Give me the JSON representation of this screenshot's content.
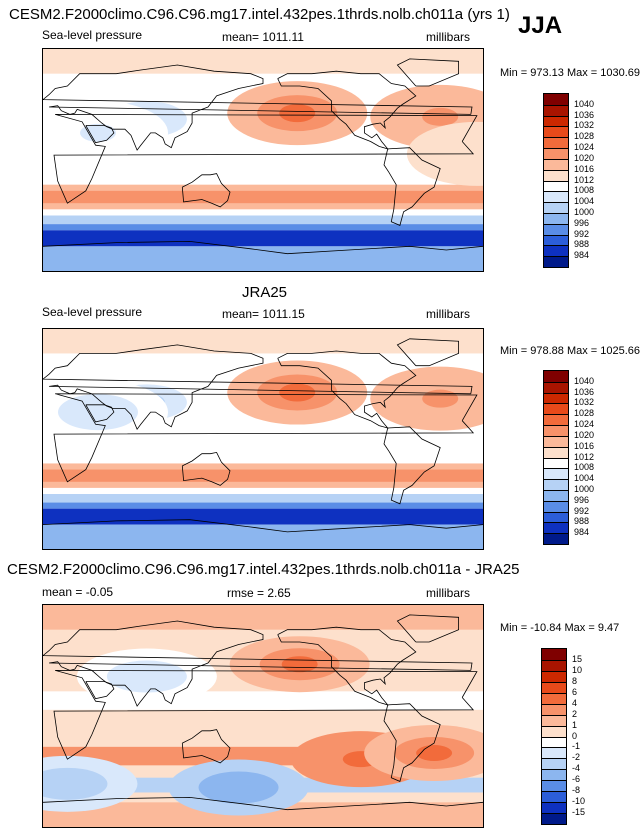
{
  "season": "JJA",
  "chart_data": [
    {
      "type": "heatmap",
      "title": "CESM2.F2000climo.C96.C96.mg17.intel.432pes.1thrds.nolb.ch011a (yrs 1)",
      "left_label": "Sea-level pressure",
      "mean_text": "mean= 1011.11",
      "units": "millibars",
      "minmax_text": "Min = 973.13 Max = 1030.69",
      "field_min": 973.13,
      "field_max": 1030.69,
      "colorbar": {
        "levels": [
          "1040",
          "1036",
          "1032",
          "1028",
          "1024",
          "1020",
          "1016",
          "1012",
          "1008",
          "1004",
          "1000",
          "996",
          "992",
          "988",
          "984"
        ],
        "colors": [
          "#7f0000",
          "#a81400",
          "#cc2800",
          "#e84a1a",
          "#f26b3b",
          "#f7926a",
          "#fbb99a",
          "#fde0cc",
          "#ffffff",
          "#d9e8fb",
          "#b6d2f5",
          "#8cb6ef",
          "#5a8de6",
          "#2c5ed9",
          "#0e31c0",
          "#001a8a"
        ]
      },
      "anomalies": [
        {
          "lon": -152,
          "lat": 38,
          "value": 14
        },
        {
          "lon": -35,
          "lat": 35,
          "value": 10
        },
        {
          "lon": -5,
          "lat": 5,
          "value": 2
        },
        {
          "lon": 85,
          "lat": 33,
          "value": -8
        },
        {
          "lon": 45,
          "lat": 22,
          "value": -5
        }
      ],
      "background_level": 1010
    },
    {
      "type": "heatmap",
      "title": "JRA25",
      "left_label": "Sea-level pressure",
      "mean_text": "mean= 1011.15",
      "units": "millibars",
      "minmax_text": "Min = 978.88 Max = 1025.66",
      "field_min": 978.88,
      "field_max": 1025.66,
      "colorbar": {
        "levels": [
          "1040",
          "1036",
          "1032",
          "1028",
          "1024",
          "1020",
          "1016",
          "1012",
          "1008",
          "1004",
          "1000",
          "996",
          "992",
          "988",
          "984"
        ],
        "colors": [
          "#7f0000",
          "#a81400",
          "#cc2800",
          "#e84a1a",
          "#f26b3b",
          "#f7926a",
          "#fbb99a",
          "#fde0cc",
          "#ffffff",
          "#d9e8fb",
          "#b6d2f5",
          "#8cb6ef",
          "#5a8de6",
          "#2c5ed9",
          "#0e31c0",
          "#001a8a"
        ]
      },
      "anomalies": [
        {
          "lon": -152,
          "lat": 38,
          "value": 12
        },
        {
          "lon": -35,
          "lat": 33,
          "value": 10
        },
        {
          "lon": 85,
          "lat": 30,
          "value": -9
        },
        {
          "lon": 45,
          "lat": 22,
          "value": -6
        }
      ],
      "background_level": 1011
    },
    {
      "type": "heatmap",
      "title": "CESM2.F2000climo.C96.C96.mg17.intel.432pes.1thrds.nolb.ch011a - JRA25",
      "left_label": "mean =  -0.05",
      "mean_text": "rmse =  2.65",
      "units": "millibars",
      "minmax_text": "Min = -10.84 Max =   9.47",
      "field_min": -10.84,
      "field_max": 9.47,
      "colorbar": {
        "levels": [
          "15",
          "10",
          "8",
          "6",
          "4",
          "2",
          "1",
          "0",
          "-1",
          "-2",
          "-4",
          "-6",
          "-8",
          "-10",
          "-15"
        ],
        "colors": [
          "#7f0000",
          "#a81400",
          "#cc2800",
          "#e84a1a",
          "#f26b3b",
          "#f7926a",
          "#fbb99a",
          "#fde0cc",
          "#ffffff",
          "#d9e8fb",
          "#b6d2f5",
          "#8cb6ef",
          "#5a8de6",
          "#2c5ed9",
          "#0e31c0",
          "#001a8a"
        ]
      },
      "anomalies": [
        {
          "lon": -150,
          "lat": 42,
          "value": 4
        },
        {
          "lon": 85,
          "lat": 32,
          "value": -2
        },
        {
          "lon": -100,
          "lat": -35,
          "value": 5
        },
        {
          "lon": -40,
          "lat": -30,
          "value": 4
        },
        {
          "lon": 160,
          "lat": -58,
          "value": -6
        },
        {
          "lon": 20,
          "lat": -55,
          "value": -4
        }
      ],
      "background_level": 0
    }
  ]
}
